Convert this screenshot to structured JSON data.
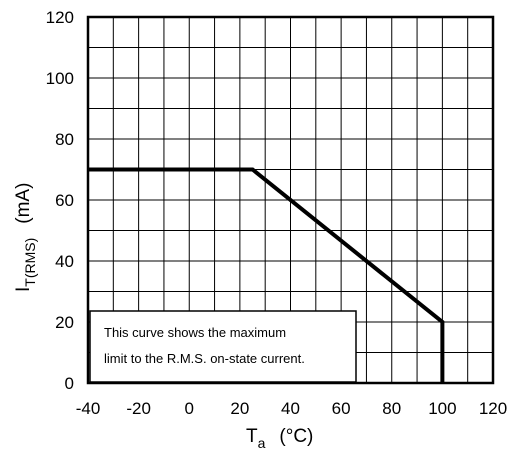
{
  "chart_data": {
    "type": "line",
    "title": "",
    "xlabel": {
      "main": "T",
      "sub": "a",
      "unit": "(°C)"
    },
    "ylabel": {
      "main": "I",
      "sub": "T(RMS)",
      "unit": "(mA)"
    },
    "xlim": [
      -40,
      120
    ],
    "ylim": [
      0,
      120
    ],
    "x_ticks": [
      -40,
      -20,
      0,
      20,
      40,
      60,
      80,
      100,
      120
    ],
    "y_ticks": [
      0,
      20,
      40,
      60,
      80,
      100,
      120
    ],
    "x_tick_labels": [
      "-40",
      "-20",
      "0",
      "20",
      "40",
      "60",
      "80",
      "100",
      "120"
    ],
    "y_tick_labels": [
      "0",
      "20",
      "40",
      "60",
      "80",
      "100",
      "120"
    ],
    "grid": true,
    "grid_x_minor_step": 10,
    "grid_y_minor_step": 10,
    "legend": "none",
    "series": [
      {
        "x": [
          -40,
          25,
          100,
          100
        ],
        "y": [
          70,
          70,
          20,
          0
        ],
        "color": "#000000"
      }
    ],
    "annotation": {
      "lines": [
        "This curve shows the maximum",
        "limit to the R.M.S. on-state current."
      ]
    }
  }
}
